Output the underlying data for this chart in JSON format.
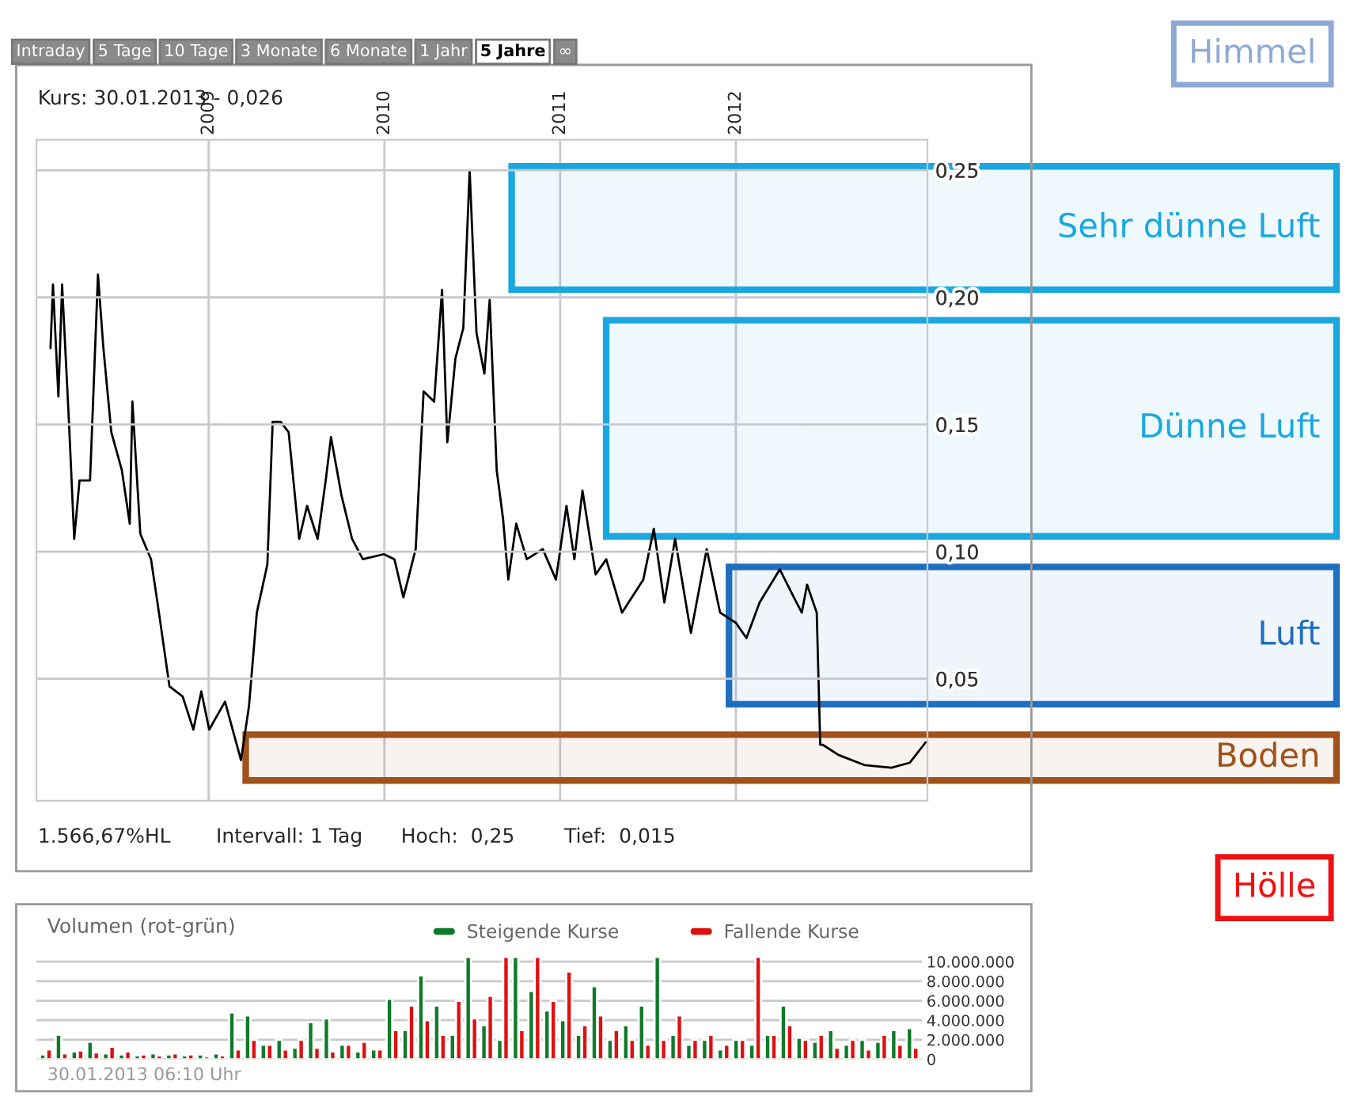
{
  "chart_data": [
    {
      "type": "line",
      "subtitle": "Kurs: 30.01.2013 - 0,026",
      "x": [
        2008.1,
        2008.114,
        2008.145,
        2008.166,
        2008.205,
        2008.235,
        2008.265,
        2008.325,
        2008.37,
        2008.401,
        2008.446,
        2008.506,
        2008.551,
        2008.566,
        2008.611,
        2008.672,
        2008.717,
        2008.777,
        2008.852,
        2008.913,
        2008.958,
        2009.003,
        2009.093,
        2009.184,
        2009.229,
        2009.274,
        2009.334,
        2009.364,
        2009.41,
        2009.455,
        2009.515,
        2009.56,
        2009.62,
        2009.666,
        2009.696,
        2009.756,
        2009.816,
        2009.877,
        2009.997,
        2010.057,
        2010.108,
        2010.178,
        2010.223,
        2010.283,
        2010.328,
        2010.358,
        2010.404,
        2010.449,
        2010.485,
        2010.524,
        2010.569,
        2010.599,
        2010.639,
        2010.675,
        2010.705,
        2010.75,
        2010.81,
        2010.901,
        2010.976,
        2011.036,
        2011.081,
        2011.127,
        2011.202,
        2011.262,
        2011.352,
        2011.473,
        2011.533,
        2011.593,
        2011.654,
        2011.744,
        2011.834,
        2011.91,
        2012.0,
        2012.06,
        2012.135,
        2012.25,
        2012.33,
        2012.375,
        2012.405,
        2012.46,
        2012.48,
        2012.495,
        2012.585,
        2012.735,
        2012.885,
        2012.99,
        2013.08
      ],
      "series": [
        {
          "color": "#000000",
          "values": [
            0.18,
            0.205,
            0.161,
            0.205,
            0.151,
            0.105,
            0.128,
            0.128,
            0.209,
            0.18,
            0.147,
            0.132,
            0.111,
            0.159,
            0.107,
            0.097,
            0.076,
            0.047,
            0.043,
            0.03,
            0.045,
            0.03,
            0.041,
            0.018,
            0.039,
            0.076,
            0.095,
            0.151,
            0.151,
            0.147,
            0.105,
            0.118,
            0.105,
            0.128,
            0.145,
            0.122,
            0.105,
            0.097,
            0.099,
            0.097,
            0.082,
            0.101,
            0.163,
            0.159,
            0.203,
            0.143,
            0.176,
            0.188,
            0.25,
            0.186,
            0.17,
            0.199,
            0.132,
            0.113,
            0.089,
            0.111,
            0.097,
            0.101,
            0.089,
            0.118,
            0.097,
            0.124,
            0.091,
            0.097,
            0.076,
            0.089,
            0.109,
            0.08,
            0.105,
            0.068,
            0.101,
            0.076,
            0.072,
            0.066,
            0.08,
            0.093,
            0.082,
            0.076,
            0.087,
            0.076,
            0.024,
            0.024,
            0.02,
            0.016,
            0.015,
            0.017,
            0.025
          ]
        }
      ],
      "xlim": [
        2008.02,
        2013.09
      ],
      "xticks": [
        {
          "value": 2009,
          "label": "2009"
        },
        {
          "value": 2010,
          "label": "2010"
        },
        {
          "value": 2011,
          "label": "2011"
        },
        {
          "value": 2012,
          "label": "2012"
        }
      ],
      "ylim": [
        0.002,
        0.262
      ],
      "yticks": [
        {
          "value": 0.05,
          "label": "0,05"
        },
        {
          "value": 0.1,
          "label": "0,10"
        },
        {
          "value": 0.15,
          "label": "0,15"
        },
        {
          "value": 0.2,
          "label": "0,20"
        },
        {
          "value": 0.25,
          "label": "0,25"
        }
      ],
      "grid": true,
      "legend": false,
      "line_style": "solid",
      "marker": "none",
      "bands": [
        {
          "axis": "y",
          "from": 0.203,
          "to": 0.2515,
          "label": "Sehr dünne Luft",
          "color": "#1aa7e0"
        },
        {
          "axis": "y",
          "from": 0.106,
          "to": 0.191,
          "label": "Dünne Luft",
          "color": "#1aa7e0"
        },
        {
          "axis": "y",
          "from": 0.04,
          "to": 0.094,
          "label": "Luft",
          "color": "#1e6fbf"
        },
        {
          "axis": "y",
          "from": 0.01,
          "to": 0.028,
          "label": "Boden",
          "color": "#a0521a"
        }
      ],
      "annotations": [
        "Intraday",
        "5 Tage",
        "10 Tage",
        "3 Monate",
        "6 Monate",
        "1 Jahr",
        "5 Jahre",
        "∞",
        "1.566,67%HL",
        "Intervall: 1 Tag",
        "Hoch:  0,25",
        "Tief:  0,015",
        "Himmel",
        "Hölle"
      ]
    },
    {
      "type": "bar",
      "title": "Volumen (rot-grün)",
      "categories": [
        null,
        null,
        null,
        null,
        null,
        null,
        null,
        null,
        null,
        null,
        null,
        null,
        null,
        null,
        null,
        null,
        null,
        null,
        null,
        null,
        null,
        null,
        null,
        null,
        null,
        null,
        null,
        null,
        null,
        null,
        null,
        null,
        null,
        null,
        null,
        null,
        null,
        null,
        null,
        null,
        null,
        null,
        null,
        null,
        null,
        null,
        null,
        null,
        null,
        null,
        null,
        null,
        null,
        null,
        null,
        null
      ],
      "series": [
        {
          "name": "Steigende Kurse",
          "color": "#0f7a2a",
          "values": [
            500000,
            2500000,
            800000,
            1800000,
            600000,
            500000,
            400000,
            600000,
            500000,
            400000,
            500000,
            600000,
            4800000,
            4500000,
            1500000,
            2000000,
            1200000,
            3800000,
            4200000,
            1500000,
            800000,
            1000000,
            6200000,
            3000000,
            8600000,
            5500000,
            2500000,
            10500000,
            3500000,
            2000000,
            10500000,
            7000000,
            5000000,
            4000000,
            2500000,
            7500000,
            2000000,
            3500000,
            5500000,
            10500000,
            2500000,
            1500000,
            2000000,
            1000000,
            2000000,
            1500000,
            2500000,
            5500000,
            2200000,
            1800000,
            3000000,
            1500000,
            2000000,
            1800000,
            3000000,
            3200000
          ]
        },
        {
          "name": "Fallende Kurse",
          "color": "#e01010",
          "values": [
            1000000,
            600000,
            900000,
            700000,
            1300000,
            800000,
            500000,
            400000,
            600000,
            500000,
            300000,
            400000,
            1000000,
            2000000,
            1500000,
            1000000,
            2000000,
            1200000,
            800000,
            1500000,
            1800000,
            1000000,
            3000000,
            5500000,
            4000000,
            2500000,
            6000000,
            4200000,
            6500000,
            10500000,
            3000000,
            10500000,
            6000000,
            9000000,
            3500000,
            4500000,
            3000000,
            2000000,
            1500000,
            2000000,
            4500000,
            2000000,
            2500000,
            1500000,
            2000000,
            10500000,
            2500000,
            3500000,
            2000000,
            2500000,
            1200000,
            2000000,
            1000000,
            2500000,
            1500000,
            1200000
          ]
        }
      ],
      "ylim": [
        0,
        10700000
      ],
      "yticks": [
        0,
        {
          "value": 2000000,
          "label": "2.000.000"
        },
        {
          "value": 4000000,
          "label": "4.000.000"
        },
        {
          "value": 6000000,
          "label": "6.000.000"
        },
        {
          "value": 8000000,
          "label": "8.000.000"
        },
        {
          "value": 10000000,
          "label": "10.000.000"
        }
      ],
      "grid": "y",
      "legend": "top right",
      "annotations": [
        "30.01.2013 06:10 Uhr"
      ]
    }
  ]
}
